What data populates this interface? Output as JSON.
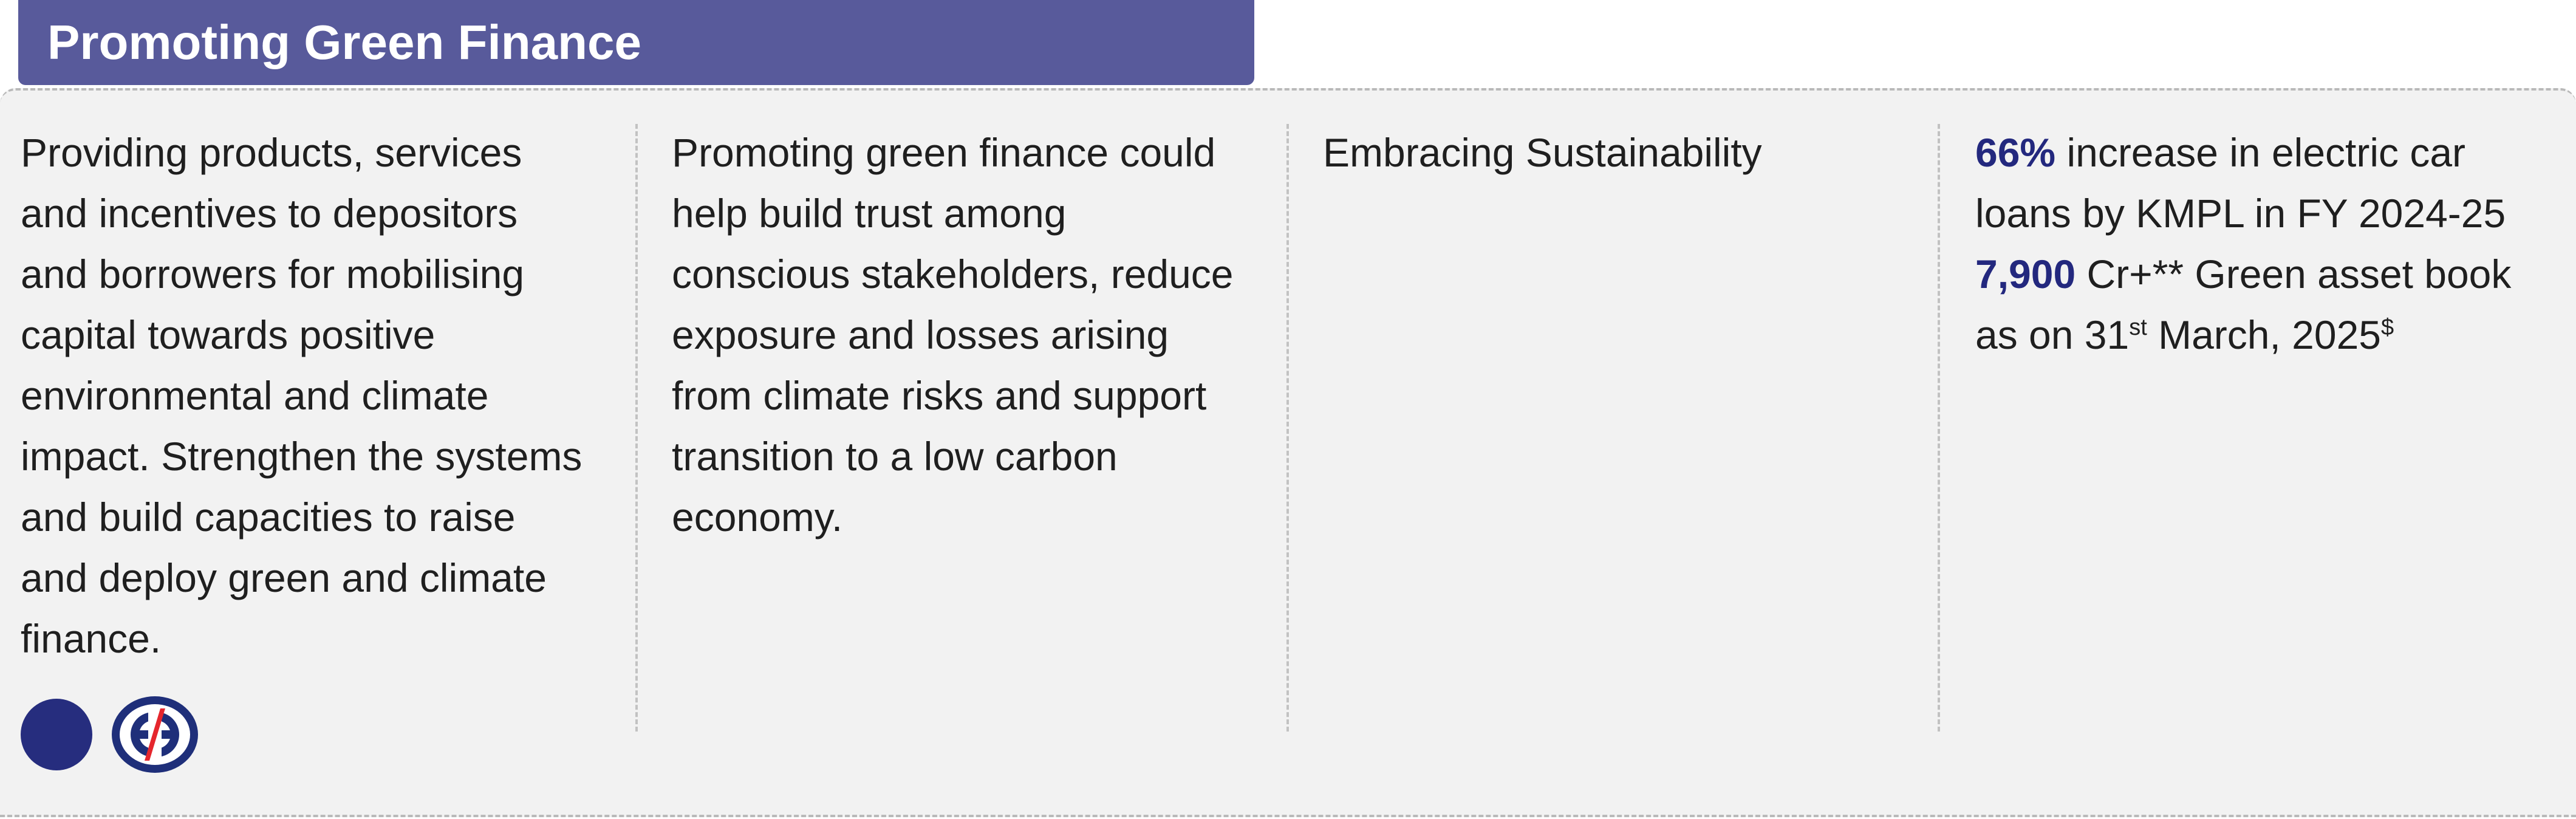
{
  "section": {
    "title": "Promoting Green Finance"
  },
  "columns": {
    "description": "Providing products, services and incentives to depositors and borrowers for mobilising capital towards positive environmental and climate impact. Strengthen the systems and build capacities to raise and deploy green and climate finance.",
    "rationale": "Promoting green finance could help build trust among conscious stakeholders, reduce exposure and losses arising from climate risks and support transition to a low carbon economy.",
    "approach": "Embracing Sustainability"
  },
  "stats": [
    {
      "value": "66%",
      "text": " increase in electric car loans by KMPL in FY 2024-25"
    },
    {
      "value": "7,900",
      "text_before_sup": " Cr+** Green asset book as on 31",
      "sup1": "st",
      "text_after_sup": " March, 2025",
      "sup2": "$"
    }
  ],
  "icons": [
    {
      "name": "navy-circle-icon",
      "color": "#262d7e"
    },
    {
      "name": "kotak-logo-icon",
      "color": "#1f2f7a",
      "accent": "#e5262d"
    }
  ]
}
